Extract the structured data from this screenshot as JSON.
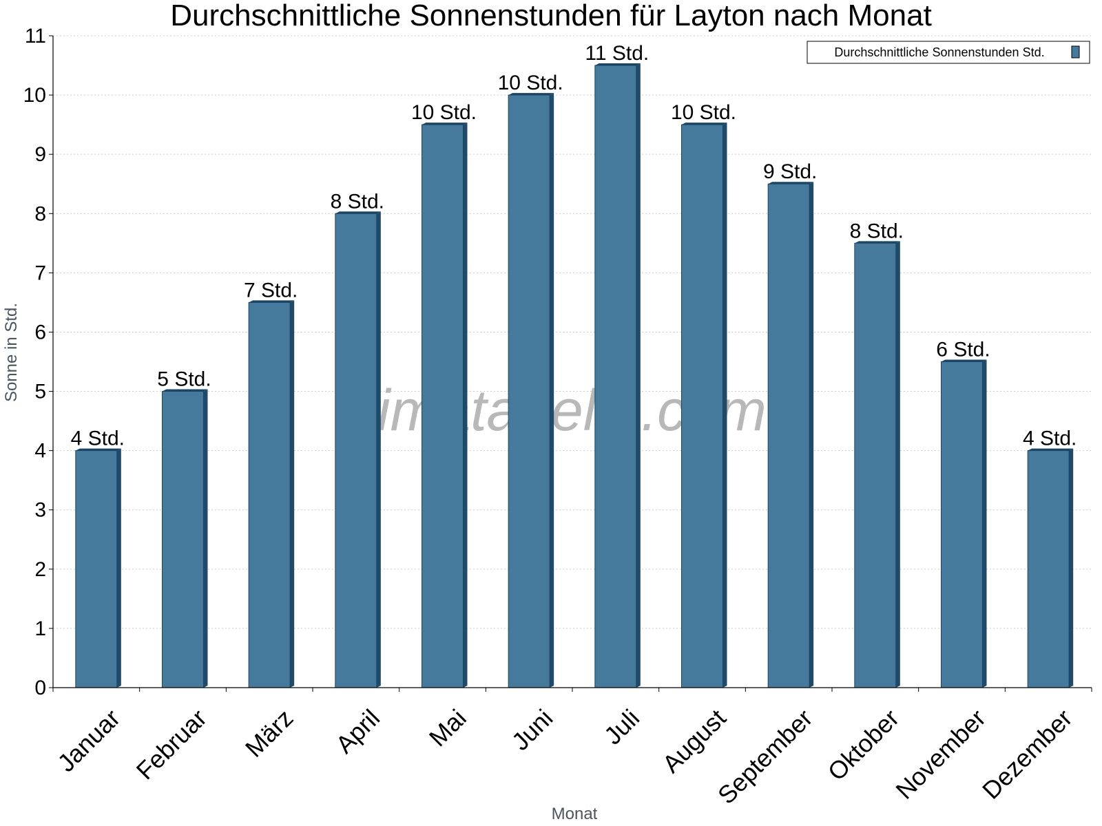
{
  "chart_data": {
    "type": "bar",
    "title": "Durchschnittliche Sonnenstunden für Layton nach Monat",
    "xlabel": "Monat",
    "ylabel": "Sonne in Std.",
    "ylim": [
      0,
      11
    ],
    "yticks": [
      "0",
      "1",
      "2",
      "3",
      "4",
      "5",
      "6",
      "7",
      "8",
      "9",
      "10",
      "11"
    ],
    "grid": true,
    "legend_position": "top-right",
    "categories": [
      "Januar",
      "Februar",
      "März",
      "April",
      "Mai",
      "Juni",
      "Juli",
      "August",
      "September",
      "Oktober",
      "November",
      "Dezember"
    ],
    "series": [
      {
        "name": "Durchschnittliche Sonnenstunden Std.",
        "values": [
          4,
          5,
          6.5,
          8,
          9.5,
          10,
          10.5,
          9.5,
          8.5,
          7.5,
          5.5,
          4
        ],
        "labels": [
          "4 Std.",
          "5 Std.",
          "7 Std.",
          "8 Std.",
          "10 Std.",
          "10 Std.",
          "11 Std.",
          "10 Std.",
          "9 Std.",
          "8 Std.",
          "6 Std.",
          "4 Std."
        ]
      }
    ],
    "colors": {
      "bar": "#467a9d",
      "bar_side": "#1f4a6a",
      "bar_top": "#1a4565",
      "grid": "#cccccc"
    }
  },
  "watermark": "klimatabelle.com"
}
